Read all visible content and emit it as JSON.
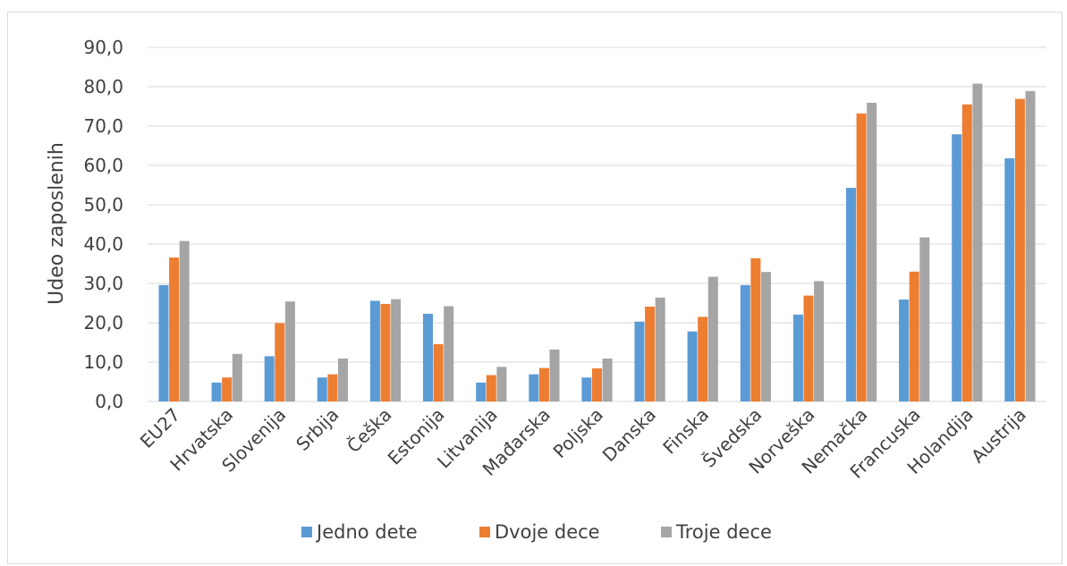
{
  "chart_data": {
    "type": "bar",
    "ylabel": "Udeo zaposlenih",
    "ylim": [
      0,
      90
    ],
    "ytick_step": 10,
    "ytick_labels": [
      "0,0",
      "10,0",
      "20,0",
      "30,0",
      "40,0",
      "50,0",
      "60,0",
      "70,0",
      "80,0",
      "90,0"
    ],
    "grid": true,
    "legend_position": "bottom",
    "categories": [
      "EU27",
      "Hrvatska",
      "Slovenija",
      "Srbija",
      "Češka",
      "Estonija",
      "Litvanija",
      "Mađarska",
      "Poljska",
      "Danska",
      "Finska",
      "Švedska",
      "Norveška",
      "Nemačka",
      "Francuska",
      "Holandija",
      "Austrija"
    ],
    "series": [
      {
        "name": "Jedno dete",
        "color": "#5b9bd5",
        "values": [
          29.6,
          4.8,
          11.5,
          6.1,
          25.6,
          22.3,
          4.8,
          6.9,
          6.1,
          20.3,
          17.8,
          29.6,
          22.1,
          54.3,
          25.9,
          67.9,
          61.8
        ]
      },
      {
        "name": "Dvoje dece",
        "color": "#ed7d31",
        "values": [
          36.6,
          6.1,
          19.9,
          6.9,
          24.8,
          14.6,
          6.7,
          8.5,
          8.4,
          24.1,
          21.5,
          36.4,
          26.9,
          73.2,
          33.0,
          75.5,
          76.9
        ]
      },
      {
        "name": "Troje dece",
        "color": "#a5a5a5",
        "values": [
          40.8,
          12.1,
          25.4,
          10.9,
          26.0,
          24.2,
          8.8,
          13.2,
          10.9,
          26.4,
          31.7,
          32.9,
          30.6,
          75.9,
          41.7,
          80.8,
          78.9
        ]
      }
    ]
  }
}
